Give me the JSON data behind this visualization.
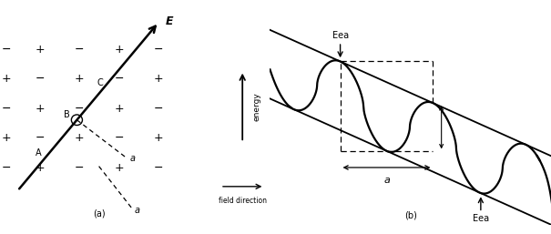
{
  "fig_width": 6.05,
  "fig_height": 2.57,
  "bg_color": "#ffffff",
  "line_color": "#000000",
  "panel_a_label": "(a)",
  "panel_b_label": "(b)",
  "E_label": "E",
  "energy_label": "energy",
  "field_label": "field direction",
  "Eea_top": "Eea",
  "Eea_bot": "Eea",
  "a_label": "a",
  "A_label": "A",
  "B_label": "B",
  "C_label": "C"
}
